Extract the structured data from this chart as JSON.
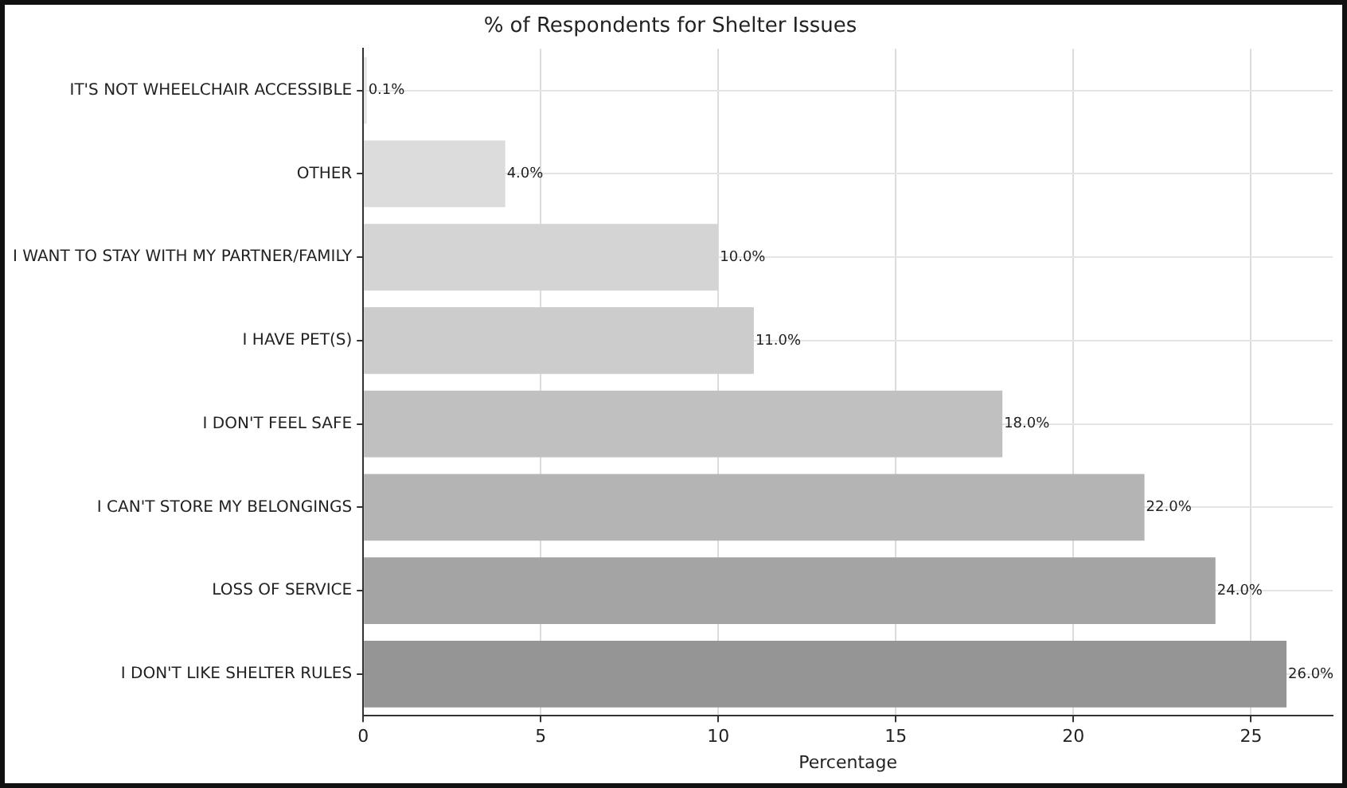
{
  "chart_data": {
    "type": "bar",
    "orientation": "horizontal",
    "title": "% of Respondents for Shelter Issues",
    "xlabel": "Percentage",
    "categories": [
      "IT'S NOT WHEELCHAIR ACCESSIBLE",
      "OTHER",
      "I WANT TO STAY WITH MY PARTNER/FAMILY",
      "I HAVE PET(S)",
      "I DON'T FEEL SAFE",
      "I CAN'T STORE MY BELONGINGS",
      "LOSS OF SERVICE",
      "I DON'T LIKE SHELTER RULES"
    ],
    "values": [
      0.1,
      4,
      10,
      11,
      18,
      22,
      24,
      26
    ],
    "value_labels": [
      "0.1%",
      "4.0%",
      "10.0%",
      "11.0%",
      "18.0%",
      "22.0%",
      "24.0%",
      "26.0%"
    ],
    "colors": [
      "#e4e4e4",
      "#dcdcdc",
      "#d4d4d4",
      "#cccccc",
      "#c0c0c0",
      "#b4b4b4",
      "#a4a4a4",
      "#959595"
    ],
    "xlim": [
      0,
      27.3
    ],
    "xticks": [
      0,
      5,
      10,
      15,
      20,
      25
    ],
    "grid": true,
    "legend": false
  }
}
